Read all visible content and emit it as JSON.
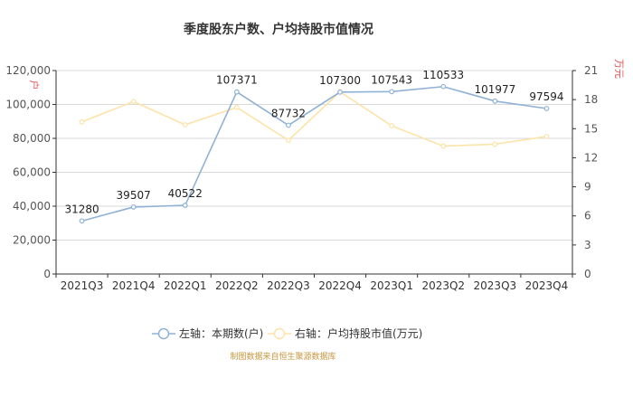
{
  "chart_data": {
    "type": "line",
    "title": "季度股东户数、户均持股市值情况",
    "categories": [
      "2021Q3",
      "2021Q4",
      "2022Q1",
      "2022Q2",
      "2022Q3",
      "2022Q4",
      "2023Q1",
      "2023Q2",
      "2023Q3",
      "2023Q4"
    ],
    "y_left": {
      "unit": "户",
      "range": [
        0,
        120000
      ],
      "ticks": [
        "0",
        "20,000",
        "40,000",
        "60,000",
        "80,000",
        "100,000",
        "120,000"
      ],
      "tick_values": [
        0,
        20000,
        40000,
        60000,
        80000,
        100000,
        120000
      ]
    },
    "y_right": {
      "unit": "万元",
      "range": [
        0,
        21
      ],
      "ticks": [
        "0",
        "3",
        "6",
        "9",
        "12",
        "15",
        "18",
        "21"
      ],
      "tick_values": [
        0,
        3,
        6,
        9,
        12,
        15,
        18,
        21
      ]
    },
    "series": [
      {
        "name": "左轴：本期数(户)",
        "axis": "left",
        "color": "#8fb1d6",
        "values": [
          31280,
          39507,
          40522,
          107371,
          87732,
          107300,
          107543,
          110533,
          101977,
          97594
        ],
        "labels": [
          "31280",
          "39507",
          "40522",
          "107371",
          "87732",
          "107300",
          "107543",
          "110533",
          "101977",
          "97594"
        ]
      },
      {
        "name": "右轴：户均持股市值(万元)",
        "axis": "right",
        "color": "#fde3a7",
        "values": [
          15.7,
          17.8,
          15.4,
          17.2,
          13.8,
          18.8,
          15.3,
          13.2,
          13.4,
          14.2
        ]
      }
    ],
    "grid": true,
    "legend_position": "bottom"
  },
  "source_note": "制图数据来自恒生聚源数据库"
}
